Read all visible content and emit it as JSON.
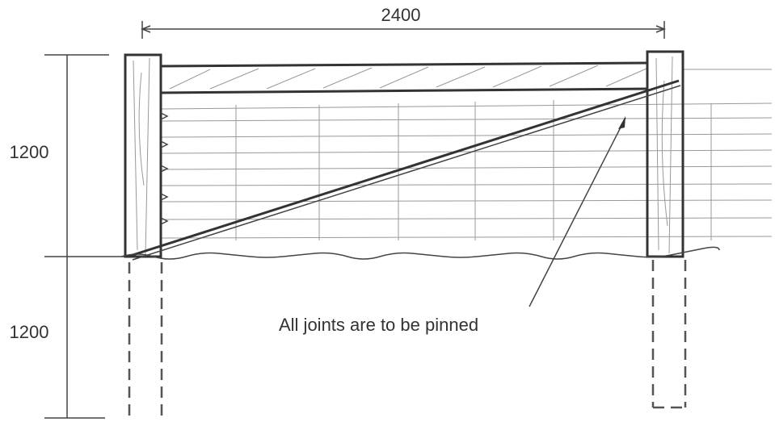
{
  "dimensions": {
    "width": "2400",
    "height_above": "1200",
    "depth_below": "1200"
  },
  "annotation": "All joints are to be pinned"
}
